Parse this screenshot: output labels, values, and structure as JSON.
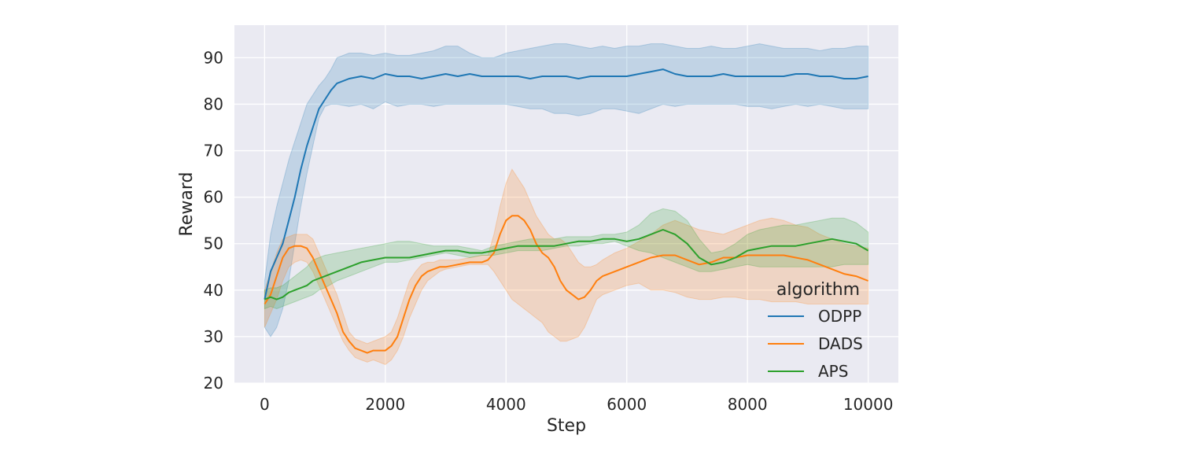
{
  "chart_data": {
    "type": "line",
    "xlabel": "Step",
    "ylabel": "Reward",
    "xlim": [
      -500,
      10500
    ],
    "ylim": [
      20,
      97
    ],
    "xticks": [
      0,
      2000,
      4000,
      6000,
      8000,
      10000
    ],
    "yticks": [
      20,
      30,
      40,
      50,
      60,
      70,
      80,
      90
    ],
    "grid": true,
    "legend": {
      "title": "algorithm",
      "position": "lower-right"
    },
    "series": [
      {
        "name": "ODPP",
        "color": "#1f77b4",
        "x": [
          0,
          100,
          200,
          300,
          400,
          500,
          600,
          700,
          800,
          900,
          1000,
          1100,
          1200,
          1400,
          1600,
          1800,
          2000,
          2200,
          2400,
          2600,
          2800,
          3000,
          3200,
          3400,
          3600,
          3800,
          4000,
          4200,
          4400,
          4600,
          4800,
          5000,
          5200,
          5400,
          5600,
          5800,
          6000,
          6200,
          6400,
          6600,
          6800,
          7000,
          7200,
          7400,
          7600,
          7800,
          8000,
          8200,
          8400,
          8600,
          8800,
          9000,
          9200,
          9400,
          9600,
          9800,
          10000
        ],
        "y": [
          38,
          44,
          47,
          50,
          55,
          60,
          66,
          71,
          75,
          79,
          81,
          83,
          84.5,
          85.5,
          86,
          85.5,
          86.5,
          86,
          86,
          85.5,
          86,
          86.5,
          86,
          86.5,
          86,
          86,
          86,
          86,
          85.5,
          86,
          86,
          86,
          85.5,
          86,
          86,
          86,
          86,
          86.5,
          87,
          87.5,
          86.5,
          86,
          86,
          86,
          86.5,
          86,
          86,
          86,
          86,
          86,
          86.5,
          86.5,
          86,
          86,
          85.5,
          85.5,
          86
        ],
        "lower": [
          32,
          30,
          32,
          36,
          42,
          50,
          58,
          65,
          71,
          77,
          79.5,
          80,
          80,
          79.5,
          80,
          79,
          80.5,
          79.5,
          80,
          80,
          79.5,
          80,
          80,
          80,
          80,
          80,
          80,
          79.5,
          79,
          79,
          78,
          78,
          77.5,
          78,
          79,
          79,
          78.5,
          78,
          79,
          80,
          79.5,
          80,
          80,
          80,
          80,
          80,
          79.5,
          79.5,
          79,
          79.5,
          80,
          79.5,
          80,
          79.5,
          79,
          79,
          79
        ],
        "upper": [
          42,
          52,
          58,
          63,
          68,
          72,
          76,
          80,
          82,
          84,
          85.5,
          87.5,
          90,
          91,
          91,
          90.5,
          91,
          90.5,
          90.5,
          91,
          91.5,
          92.5,
          92.5,
          91,
          90,
          90,
          91,
          91.5,
          92,
          92.5,
          93,
          93,
          92.5,
          92,
          92.5,
          92,
          92.5,
          92.5,
          93,
          93,
          92.5,
          92,
          92,
          92.5,
          92,
          92,
          92.5,
          93,
          92.5,
          92,
          92,
          92,
          91.5,
          92,
          92,
          92.5,
          92.5
        ]
      },
      {
        "name": "DADS",
        "color": "#ff7f0e",
        "x": [
          0,
          100,
          200,
          300,
          400,
          500,
          600,
          700,
          800,
          900,
          1000,
          1100,
          1200,
          1300,
          1400,
          1500,
          1600,
          1700,
          1800,
          1900,
          2000,
          2100,
          2200,
          2300,
          2400,
          2500,
          2600,
          2700,
          2800,
          2900,
          3000,
          3200,
          3400,
          3600,
          3700,
          3800,
          3900,
          4000,
          4100,
          4200,
          4300,
          4400,
          4500,
          4600,
          4700,
          4800,
          4900,
          5000,
          5100,
          5200,
          5300,
          5400,
          5500,
          5600,
          5800,
          6000,
          6200,
          6400,
          6600,
          6800,
          7000,
          7200,
          7400,
          7600,
          7800,
          8000,
          8200,
          8400,
          8600,
          8800,
          9000,
          9200,
          9400,
          9600,
          9800,
          10000
        ],
        "y": [
          37,
          39,
          43,
          47,
          49,
          49.5,
          49.5,
          49,
          47,
          44,
          41,
          38,
          35,
          31,
          29,
          27.5,
          27,
          26.5,
          27,
          27,
          27,
          28,
          30,
          34,
          38,
          41,
          43,
          44,
          44.5,
          45,
          45,
          45.5,
          46,
          46,
          46.5,
          48,
          52,
          55,
          56,
          56,
          55,
          53,
          50,
          48,
          47,
          45,
          42,
          40,
          39,
          38,
          38.5,
          40,
          42,
          43,
          44,
          45,
          46,
          47,
          47.5,
          47.5,
          46.5,
          45.5,
          46,
          47,
          47,
          47.5,
          47.5,
          47.5,
          47.5,
          47,
          46.5,
          45.5,
          44.5,
          43.5,
          43,
          42
        ],
        "lower": [
          32,
          35,
          38,
          42,
          45,
          46,
          46.5,
          46,
          44,
          41,
          38,
          35,
          32,
          29,
          27,
          25.5,
          25,
          24.5,
          25,
          24.5,
          24,
          25,
          27,
          30,
          34,
          37,
          40,
          42,
          43,
          44,
          44.5,
          45,
          45.5,
          45.5,
          45.5,
          44,
          42,
          40,
          38,
          37,
          36,
          35,
          34,
          33,
          31,
          30,
          29,
          29,
          29.5,
          30,
          32,
          35,
          38,
          39,
          40,
          41,
          41.5,
          40,
          40,
          39.5,
          38.5,
          38,
          38,
          38.5,
          38.5,
          38,
          38,
          37.5,
          37.5,
          37.5,
          37,
          37,
          37,
          37,
          37,
          37
        ],
        "upper": [
          40,
          44,
          48,
          51,
          51.5,
          52,
          52,
          52,
          51,
          48,
          45,
          42,
          39,
          35,
          31,
          29.5,
          29,
          28.5,
          29,
          29.5,
          30,
          31,
          34,
          38,
          42,
          44,
          45.5,
          46,
          46,
          46.5,
          46.5,
          46.5,
          47,
          47.5,
          47.5,
          52,
          58,
          63,
          66,
          64,
          62,
          59,
          56,
          54,
          52,
          51,
          51,
          50,
          48,
          46,
          45,
          45,
          45.5,
          46.5,
          48,
          49,
          50.5,
          52,
          54,
          55,
          54,
          53,
          52.5,
          52,
          53,
          54,
          55,
          55.5,
          55,
          54,
          53.5,
          52,
          51,
          50,
          49.5,
          49
        ]
      },
      {
        "name": "APS",
        "color": "#2ca02c",
        "x": [
          0,
          100,
          200,
          300,
          400,
          500,
          600,
          700,
          800,
          900,
          1000,
          1200,
          1400,
          1600,
          1800,
          2000,
          2200,
          2400,
          2600,
          2800,
          3000,
          3200,
          3400,
          3600,
          3800,
          4000,
          4200,
          4400,
          4600,
          4800,
          5000,
          5200,
          5400,
          5600,
          5800,
          6000,
          6200,
          6400,
          6600,
          6800,
          7000,
          7200,
          7400,
          7600,
          7800,
          8000,
          8200,
          8400,
          8600,
          8800,
          9000,
          9200,
          9400,
          9600,
          9800,
          10000
        ],
        "y": [
          38,
          38.5,
          38,
          38.5,
          39.5,
          40,
          40.5,
          41,
          42,
          42.5,
          43,
          44,
          45,
          46,
          46.5,
          47,
          47,
          47,
          47.5,
          48,
          48.5,
          48.5,
          48,
          48,
          48.5,
          49,
          49.5,
          49.5,
          49.5,
          49.5,
          50,
          50.5,
          50.5,
          51,
          51,
          50.5,
          51,
          52,
          53,
          52,
          50,
          47,
          45.5,
          46,
          47,
          48.5,
          49,
          49.5,
          49.5,
          49.5,
          50,
          50.5,
          51,
          50.5,
          50,
          48.5
        ],
        "lower": [
          36,
          36.5,
          36,
          36.5,
          37,
          37.5,
          38,
          38.5,
          39,
          40,
          40.5,
          42,
          43,
          44,
          45,
          46,
          46,
          46.5,
          47,
          47.5,
          48,
          47.5,
          47,
          47.5,
          47.5,
          48,
          48.5,
          48.5,
          48.5,
          49,
          49.5,
          49.5,
          50,
          50,
          50.5,
          49.5,
          48.5,
          48,
          47,
          46,
          45,
          44,
          44,
          44.5,
          45,
          45.5,
          45,
          45,
          45,
          45,
          45,
          45,
          45,
          45.5,
          45.5,
          45.5
        ],
        "upper": [
          40,
          40.5,
          40.5,
          41,
          42,
          43,
          44,
          45,
          46.5,
          47,
          47.5,
          48,
          48.5,
          49,
          49.5,
          50,
          50.5,
          50.5,
          50,
          49.5,
          49.5,
          49.5,
          49,
          48.5,
          49.5,
          50,
          50.5,
          51,
          51,
          51,
          51.5,
          51.5,
          51.5,
          52,
          52,
          52.5,
          54,
          56.5,
          57.5,
          57,
          55,
          51,
          48,
          48.5,
          50,
          52,
          53,
          53.5,
          54,
          54,
          54.5,
          55,
          55.5,
          55.5,
          54.5,
          52.5
        ]
      }
    ]
  }
}
